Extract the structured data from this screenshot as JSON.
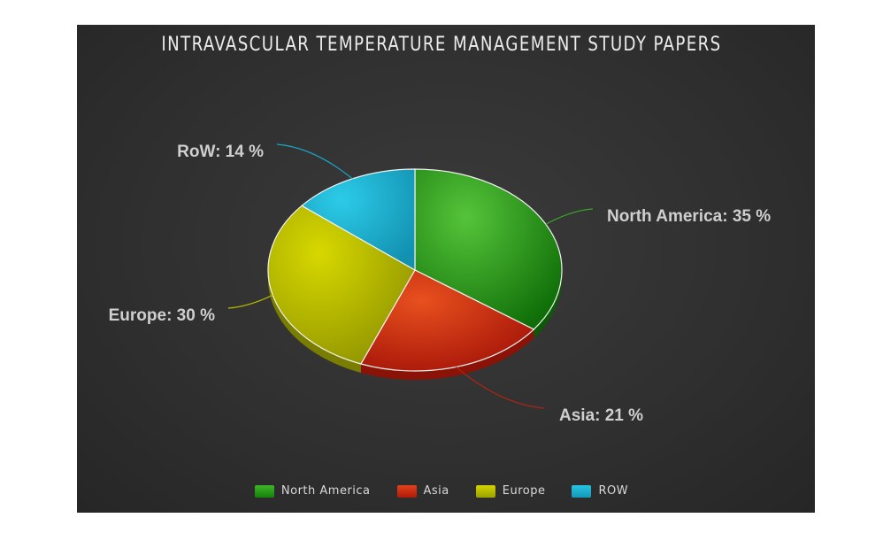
{
  "chart_data": {
    "type": "pie",
    "title": "INTRAVASCULAR TEMPERATURE MANAGEMENT STUDY PAPERS",
    "slices": [
      {
        "name": "North America",
        "value": 35,
        "label": "North America: 35 %",
        "color": "#2e9a1e"
      },
      {
        "name": "Asia",
        "value": 21,
        "label": "Asia: 21 %",
        "color": "#c8280e"
      },
      {
        "name": "Europe",
        "value": 30,
        "label": "Europe: 30 %",
        "color": "#b8bf00"
      },
      {
        "name": "RoW",
        "value": 14,
        "label": "RoW: 14 %",
        "color": "#1fb2d2"
      }
    ],
    "legend": {
      "placement": "bottom",
      "items": [
        "North America",
        "Asia",
        "Europe",
        "ROW"
      ]
    }
  }
}
